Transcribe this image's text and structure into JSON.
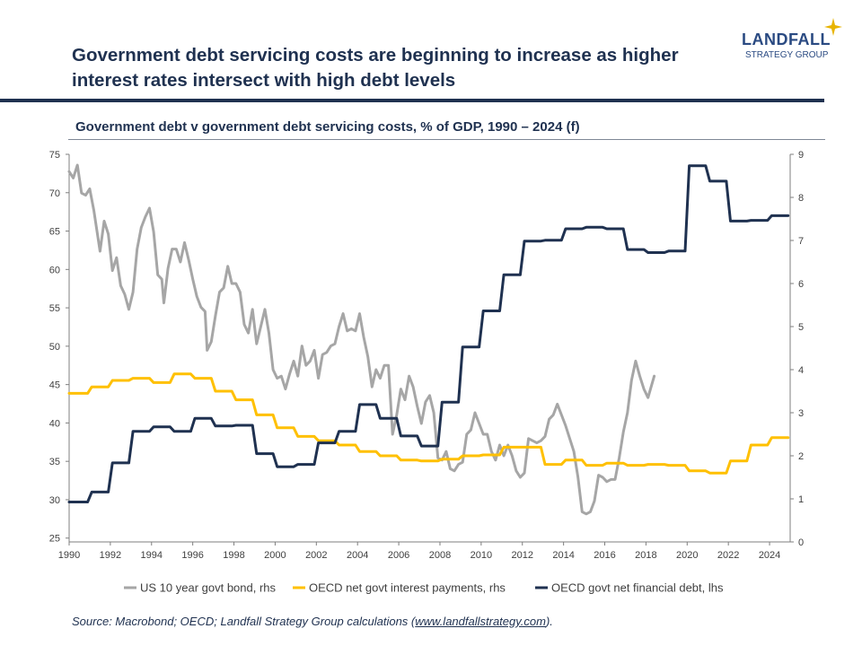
{
  "headline": "Government debt servicing costs are beginning to increase as higher interest rates intersect with high debt levels",
  "logo": {
    "name": "LANDFALL",
    "tagline": "STRATEGY GROUP",
    "accent_color": "#e8b400"
  },
  "source": {
    "prefix": "Source: Macrobond; OECD; Landfall Strategy Group calculations (",
    "link": "www.landfallstrategy.com",
    "suffix": ")."
  },
  "chart_data": {
    "type": "line",
    "title": "Government debt v government debt servicing costs, % of GDP, 1990 – 2024 (f)",
    "x_ticks": [
      "1990",
      "1992",
      "1994",
      "1996",
      "1998",
      "2000",
      "2002",
      "2004",
      "2006",
      "2008",
      "2010",
      "2012",
      "2014",
      "2016",
      "2018",
      "2020",
      "2022",
      "2024"
    ],
    "xlim": [
      1990,
      2025
    ],
    "y_left": {
      "ticks": [
        "75",
        "70",
        "65",
        "60",
        "55",
        "50",
        "45",
        "40",
        "35",
        "30",
        "25"
      ],
      "ylim": [
        24.5,
        75
      ]
    },
    "y_right": {
      "ticks": [
        "9",
        "8",
        "7",
        "6",
        "5",
        "4",
        "3",
        "2",
        "1",
        "0"
      ],
      "ylim": [
        0,
        9
      ]
    },
    "grid": false,
    "legend_position": "bottom",
    "series": [
      {
        "name": "US 10 year govt bond, rhs",
        "axis": "right",
        "color": "#a6a6a6",
        "points": [
          [
            1990.0,
            8.6
          ],
          [
            1990.2,
            8.45
          ],
          [
            1990.4,
            8.75
          ],
          [
            1990.6,
            8.1
          ],
          [
            1990.8,
            8.05
          ],
          [
            1991.0,
            8.2
          ],
          [
            1991.2,
            7.7
          ],
          [
            1991.5,
            6.75
          ],
          [
            1991.7,
            7.45
          ],
          [
            1991.9,
            7.15
          ],
          [
            1992.1,
            6.3
          ],
          [
            1992.3,
            6.6
          ],
          [
            1992.5,
            5.95
          ],
          [
            1992.7,
            5.75
          ],
          [
            1992.9,
            5.4
          ],
          [
            1993.1,
            5.8
          ],
          [
            1993.3,
            6.8
          ],
          [
            1993.5,
            7.3
          ],
          [
            1993.7,
            7.55
          ],
          [
            1993.9,
            7.75
          ],
          [
            1994.1,
            7.2
          ],
          [
            1994.3,
            6.2
          ],
          [
            1994.5,
            6.1
          ],
          [
            1994.6,
            5.55
          ],
          [
            1994.8,
            6.35
          ],
          [
            1995.0,
            6.8
          ],
          [
            1995.2,
            6.8
          ],
          [
            1995.4,
            6.5
          ],
          [
            1995.6,
            6.95
          ],
          [
            1995.8,
            6.55
          ],
          [
            1996.0,
            6.1
          ],
          [
            1996.2,
            5.7
          ],
          [
            1996.4,
            5.45
          ],
          [
            1996.6,
            5.35
          ],
          [
            1996.7,
            4.45
          ],
          [
            1996.9,
            4.65
          ],
          [
            1997.1,
            5.25
          ],
          [
            1997.3,
            5.8
          ],
          [
            1997.5,
            5.9
          ],
          [
            1997.7,
            6.4
          ],
          [
            1997.9,
            6.0
          ],
          [
            1998.1,
            6.0
          ],
          [
            1998.3,
            5.8
          ],
          [
            1998.5,
            5.05
          ],
          [
            1998.7,
            4.85
          ],
          [
            1998.9,
            5.4
          ],
          [
            1999.1,
            4.6
          ],
          [
            1999.3,
            5.0
          ],
          [
            1999.5,
            5.4
          ],
          [
            1999.7,
            4.85
          ],
          [
            1999.9,
            4.0
          ],
          [
            2000.1,
            3.8
          ],
          [
            2000.3,
            3.85
          ],
          [
            2000.5,
            3.55
          ],
          [
            2000.7,
            3.9
          ],
          [
            2000.9,
            4.2
          ],
          [
            2001.1,
            3.85
          ],
          [
            2001.3,
            4.55
          ],
          [
            2001.5,
            4.1
          ],
          [
            2001.7,
            4.2
          ],
          [
            2001.9,
            4.45
          ],
          [
            2002.1,
            3.8
          ],
          [
            2002.3,
            4.35
          ],
          [
            2002.5,
            4.4
          ],
          [
            2002.7,
            4.55
          ],
          [
            2002.9,
            4.6
          ],
          [
            2003.1,
            5.0
          ],
          [
            2003.3,
            5.3
          ],
          [
            2003.5,
            4.9
          ],
          [
            2003.7,
            4.95
          ],
          [
            2003.9,
            4.9
          ],
          [
            2004.1,
            5.3
          ],
          [
            2004.3,
            4.75
          ],
          [
            2004.5,
            4.3
          ],
          [
            2004.7,
            3.6
          ],
          [
            2004.9,
            4.0
          ],
          [
            2005.1,
            3.8
          ],
          [
            2005.3,
            4.1
          ],
          [
            2005.5,
            4.1
          ],
          [
            2005.7,
            2.5
          ],
          [
            2005.9,
            2.95
          ],
          [
            2006.1,
            3.55
          ],
          [
            2006.3,
            3.3
          ],
          [
            2006.5,
            3.85
          ],
          [
            2006.7,
            3.6
          ],
          [
            2006.9,
            3.15
          ],
          [
            2007.1,
            2.75
          ],
          [
            2007.3,
            3.25
          ],
          [
            2007.5,
            3.4
          ],
          [
            2007.7,
            3.0
          ],
          [
            2007.9,
            1.95
          ],
          [
            2008.1,
            1.9
          ],
          [
            2008.3,
            2.1
          ],
          [
            2008.5,
            1.7
          ],
          [
            2008.7,
            1.65
          ],
          [
            2008.9,
            1.8
          ],
          [
            2009.1,
            1.85
          ],
          [
            2009.3,
            2.5
          ],
          [
            2009.5,
            2.6
          ],
          [
            2009.7,
            3.0
          ],
          [
            2009.9,
            2.75
          ],
          [
            2010.1,
            2.5
          ],
          [
            2010.3,
            2.5
          ],
          [
            2010.5,
            2.1
          ],
          [
            2010.7,
            1.9
          ],
          [
            2010.9,
            2.25
          ],
          [
            2011.1,
            2.0
          ],
          [
            2011.3,
            2.25
          ],
          [
            2011.5,
            2.0
          ],
          [
            2011.7,
            1.65
          ],
          [
            2011.9,
            1.5
          ],
          [
            2012.1,
            1.6
          ],
          [
            2012.3,
            2.4
          ],
          [
            2012.5,
            2.35
          ],
          [
            2012.7,
            2.3
          ],
          [
            2012.9,
            2.35
          ],
          [
            2013.1,
            2.45
          ],
          [
            2013.3,
            2.85
          ],
          [
            2013.5,
            2.95
          ],
          [
            2013.7,
            3.2
          ],
          [
            2013.9,
            2.95
          ],
          [
            2014.1,
            2.7
          ],
          [
            2014.3,
            2.4
          ],
          [
            2014.5,
            2.1
          ],
          [
            2014.7,
            1.5
          ],
          [
            2014.9,
            0.7
          ],
          [
            2015.1,
            0.65
          ],
          [
            2015.3,
            0.7
          ],
          [
            2015.5,
            0.95
          ],
          [
            2015.7,
            1.55
          ],
          [
            2015.9,
            1.5
          ],
          [
            2016.1,
            1.4
          ],
          [
            2016.3,
            1.45
          ],
          [
            2016.5,
            1.45
          ],
          [
            2016.7,
            1.95
          ],
          [
            2016.9,
            2.55
          ],
          [
            2017.1,
            3.0
          ],
          [
            2017.3,
            3.75
          ],
          [
            2017.5,
            4.2
          ],
          [
            2017.7,
            3.85
          ],
          [
            2017.9,
            3.55
          ],
          [
            2018.1,
            3.35
          ],
          [
            2018.4,
            3.85
          ]
        ]
      },
      {
        "name": "OECD net govt interest payments, rhs",
        "axis": "right",
        "color": "#ffc000",
        "points": [
          [
            1990.0,
            3.45
          ],
          [
            1990.9,
            3.45
          ],
          [
            1991.1,
            3.6
          ],
          [
            1991.9,
            3.6
          ],
          [
            1992.1,
            3.75
          ],
          [
            1992.9,
            3.75
          ],
          [
            1993.1,
            3.8
          ],
          [
            1993.9,
            3.8
          ],
          [
            1994.1,
            3.7
          ],
          [
            1994.9,
            3.7
          ],
          [
            1995.1,
            3.9
          ],
          [
            1995.9,
            3.9
          ],
          [
            1996.1,
            3.8
          ],
          [
            1996.9,
            3.8
          ],
          [
            1997.1,
            3.5
          ],
          [
            1997.9,
            3.5
          ],
          [
            1998.1,
            3.3
          ],
          [
            1998.9,
            3.3
          ],
          [
            1999.1,
            2.95
          ],
          [
            1999.9,
            2.95
          ],
          [
            2000.1,
            2.65
          ],
          [
            2000.9,
            2.65
          ],
          [
            2001.1,
            2.45
          ],
          [
            2001.9,
            2.45
          ],
          [
            2002.1,
            2.35
          ],
          [
            2002.9,
            2.35
          ],
          [
            2003.1,
            2.25
          ],
          [
            2003.9,
            2.25
          ],
          [
            2004.1,
            2.1
          ],
          [
            2004.9,
            2.1
          ],
          [
            2005.1,
            2.0
          ],
          [
            2005.9,
            2.0
          ],
          [
            2006.1,
            1.9
          ],
          [
            2006.9,
            1.9
          ],
          [
            2007.1,
            1.88
          ],
          [
            2007.9,
            1.88
          ],
          [
            2008.1,
            1.92
          ],
          [
            2008.9,
            1.92
          ],
          [
            2009.1,
            2.0
          ],
          [
            2009.9,
            2.0
          ],
          [
            2010.1,
            2.02
          ],
          [
            2010.9,
            2.02
          ],
          [
            2011.1,
            2.2
          ],
          [
            2011.9,
            2.2
          ],
          [
            2012.1,
            2.2
          ],
          [
            2012.9,
            2.2
          ],
          [
            2013.1,
            1.8
          ],
          [
            2013.9,
            1.8
          ],
          [
            2014.1,
            1.9
          ],
          [
            2014.9,
            1.9
          ],
          [
            2015.1,
            1.78
          ],
          [
            2015.9,
            1.78
          ],
          [
            2016.1,
            1.83
          ],
          [
            2016.9,
            1.83
          ],
          [
            2017.1,
            1.78
          ],
          [
            2017.9,
            1.78
          ],
          [
            2018.1,
            1.8
          ],
          [
            2018.9,
            1.8
          ],
          [
            2019.1,
            1.78
          ],
          [
            2019.9,
            1.78
          ],
          [
            2020.1,
            1.65
          ],
          [
            2020.9,
            1.65
          ],
          [
            2021.1,
            1.6
          ],
          [
            2021.9,
            1.6
          ],
          [
            2022.1,
            1.88
          ],
          [
            2022.9,
            1.88
          ],
          [
            2023.1,
            2.25
          ],
          [
            2023.9,
            2.25
          ],
          [
            2024.1,
            2.42
          ],
          [
            2024.9,
            2.42
          ]
        ]
      },
      {
        "name": "OECD govt net financial debt, lhs",
        "axis": "left",
        "color": "#1f3150",
        "points": [
          [
            1990.0,
            29.7
          ],
          [
            1990.9,
            29.7
          ],
          [
            1991.1,
            31.0
          ],
          [
            1991.9,
            31.0
          ],
          [
            1992.1,
            34.8
          ],
          [
            1992.9,
            34.8
          ],
          [
            1993.1,
            38.9
          ],
          [
            1993.9,
            38.9
          ],
          [
            1994.1,
            39.5
          ],
          [
            1994.9,
            39.5
          ],
          [
            1995.1,
            38.9
          ],
          [
            1995.9,
            38.9
          ],
          [
            1996.1,
            40.6
          ],
          [
            1996.9,
            40.6
          ],
          [
            1997.1,
            39.6
          ],
          [
            1997.9,
            39.6
          ],
          [
            1998.1,
            39.7
          ],
          [
            1998.9,
            39.7
          ],
          [
            1999.1,
            36.0
          ],
          [
            1999.9,
            36.0
          ],
          [
            2000.1,
            34.3
          ],
          [
            2000.9,
            34.3
          ],
          [
            2001.1,
            34.6
          ],
          [
            2001.9,
            34.6
          ],
          [
            2002.1,
            37.4
          ],
          [
            2002.9,
            37.4
          ],
          [
            2003.1,
            38.9
          ],
          [
            2003.9,
            38.9
          ],
          [
            2004.1,
            42.4
          ],
          [
            2004.9,
            42.4
          ],
          [
            2005.1,
            40.6
          ],
          [
            2005.9,
            40.6
          ],
          [
            2006.1,
            38.3
          ],
          [
            2006.9,
            38.3
          ],
          [
            2007.1,
            37.0
          ],
          [
            2007.9,
            37.0
          ],
          [
            2008.1,
            42.7
          ],
          [
            2008.9,
            42.7
          ],
          [
            2009.1,
            49.9
          ],
          [
            2009.9,
            49.9
          ],
          [
            2010.1,
            54.6
          ],
          [
            2010.9,
            54.6
          ],
          [
            2011.1,
            59.3
          ],
          [
            2011.9,
            59.3
          ],
          [
            2012.1,
            63.7
          ],
          [
            2012.9,
            63.7
          ],
          [
            2013.1,
            63.8
          ],
          [
            2013.9,
            63.8
          ],
          [
            2014.1,
            65.3
          ],
          [
            2014.9,
            65.3
          ],
          [
            2015.1,
            65.5
          ],
          [
            2015.9,
            65.5
          ],
          [
            2016.1,
            65.3
          ],
          [
            2016.9,
            65.3
          ],
          [
            2017.1,
            62.6
          ],
          [
            2017.9,
            62.6
          ],
          [
            2018.1,
            62.2
          ],
          [
            2018.9,
            62.2
          ],
          [
            2019.1,
            62.4
          ],
          [
            2019.9,
            62.4
          ],
          [
            2020.1,
            73.5
          ],
          [
            2020.9,
            73.5
          ],
          [
            2021.1,
            71.5
          ],
          [
            2021.9,
            71.5
          ],
          [
            2022.1,
            66.3
          ],
          [
            2022.9,
            66.3
          ],
          [
            2023.1,
            66.4
          ],
          [
            2023.9,
            66.4
          ],
          [
            2024.1,
            67.0
          ],
          [
            2024.9,
            67.0
          ]
        ]
      }
    ]
  }
}
